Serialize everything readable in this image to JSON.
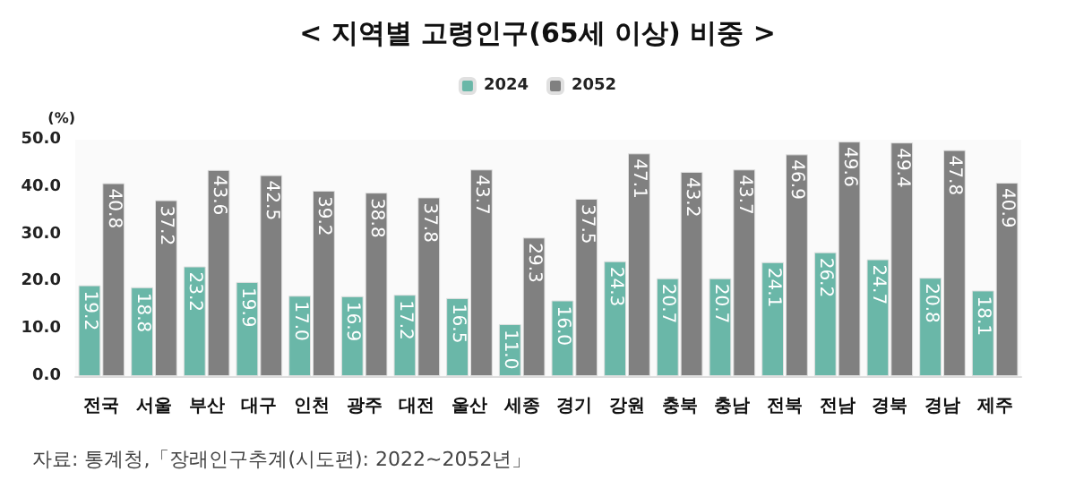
{
  "chart_data": {
    "type": "bar",
    "title": "< 지역별 고령인구(65세 이상) 비중 >",
    "ylabel": "(%)",
    "categories": [
      "전국",
      "서울",
      "부산",
      "대구",
      "인천",
      "광주",
      "대전",
      "울산",
      "세종",
      "경기",
      "강원",
      "충북",
      "충남",
      "전북",
      "전남",
      "경북",
      "경남",
      "제주"
    ],
    "series": [
      {
        "name": "2024",
        "color": "#6ab7a8",
        "values": [
          19.2,
          18.8,
          23.2,
          19.9,
          17.0,
          16.9,
          17.2,
          16.5,
          11.0,
          16.0,
          24.3,
          20.7,
          20.7,
          24.1,
          26.2,
          24.7,
          20.8,
          18.1
        ],
        "value_labels": [
          "19.2",
          "18.8",
          "23.2",
          "19.9",
          "17.0",
          "16.9",
          "17.2",
          "16.5",
          "11.0",
          "16.0",
          "24.3",
          "20.7",
          "20.7",
          "24.1",
          "26.2",
          "24.7",
          "20.8",
          "18.1"
        ]
      },
      {
        "name": "2052",
        "color": "#808080",
        "values": [
          40.8,
          37.2,
          43.6,
          42.5,
          39.2,
          38.8,
          37.8,
          43.7,
          29.3,
          37.5,
          47.1,
          43.2,
          43.7,
          46.9,
          49.6,
          49.4,
          47.8,
          40.9
        ],
        "value_labels": [
          "40.8",
          "37.2",
          "43.6",
          "42.5",
          "39.2",
          "38.8",
          "37.8",
          "43.7",
          "29.3",
          "37.5",
          "47.1",
          "43.2",
          "43.7",
          "46.9",
          "49.6",
          "49.4",
          "47.8",
          "40.9"
        ]
      }
    ],
    "ylim": [
      0,
      50
    ],
    "yticks": [
      {
        "value": 0,
        "label": "0.0"
      },
      {
        "value": 10,
        "label": "10.0"
      },
      {
        "value": 20,
        "label": "20.0"
      },
      {
        "value": 30,
        "label": "30.0"
      },
      {
        "value": 40,
        "label": "40.0"
      },
      {
        "value": 50,
        "label": "50.0"
      }
    ],
    "grid": false,
    "legend": "top",
    "annotations": [
      "자료: 통계청,「장래인구추계(시도편): 2022~2052년」"
    ]
  }
}
